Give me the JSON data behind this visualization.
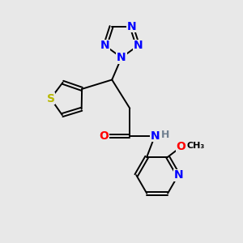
{
  "background_color": "#e8e8e8",
  "bond_color": "#000000",
  "atom_colors": {
    "N": "#0000ff",
    "S": "#b8b800",
    "O": "#ff0000",
    "H": "#708090",
    "C": "#000000"
  },
  "lw": 1.4,
  "fs": 10
}
